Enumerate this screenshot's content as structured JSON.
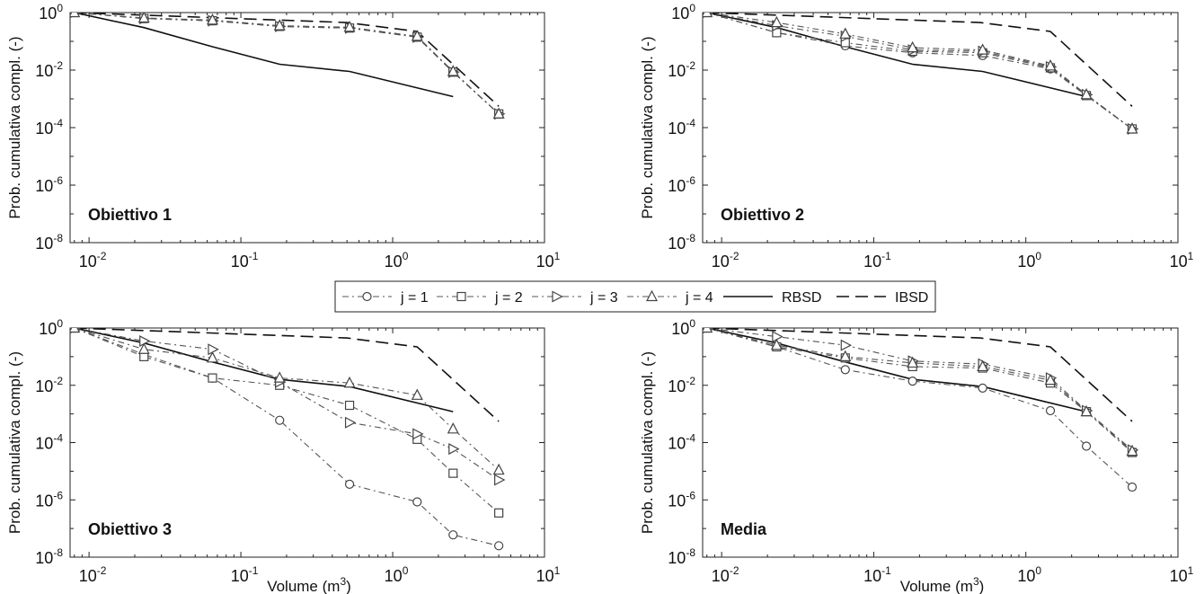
{
  "legend": {
    "entries": [
      {
        "label": "j = 1",
        "series": "j1"
      },
      {
        "label": "j = 2",
        "series": "j2"
      },
      {
        "label": "j = 3",
        "series": "j3"
      },
      {
        "label": "j = 4",
        "series": "j4"
      },
      {
        "label": "RBSD",
        "series": "RBSD"
      },
      {
        "label": "IBSD",
        "series": "IBSD"
      }
    ]
  },
  "series_styles": {
    "j1": {
      "marker": "circle",
      "dash": "dashdot",
      "color": "#555555"
    },
    "j2": {
      "marker": "square",
      "dash": "dashdot",
      "color": "#555555"
    },
    "j3": {
      "marker": "triangle-right",
      "dash": "dashdot",
      "color": "#555555"
    },
    "j4": {
      "marker": "triangle-up",
      "dash": "dashdot",
      "color": "#555555"
    },
    "RBSD": {
      "marker": "none",
      "dash": "solid",
      "color": "#111111"
    },
    "IBSD": {
      "marker": "none",
      "dash": "dashed",
      "color": "#111111"
    }
  },
  "chart_data": [
    {
      "type": "line",
      "panel_title": "Obiettivo 1",
      "xlabel": "",
      "ylabel": "Prob. cumulativa compl. (-)",
      "x_scale": "log",
      "y_scale": "log",
      "xlim": [
        0.0075,
        10
      ],
      "ylim": [
        1e-08,
        1
      ],
      "xticks": [
        "10-2",
        "10-1",
        "100",
        "101"
      ],
      "yticks": [
        "10-8",
        "10-6",
        "10-4",
        "10-2",
        "100"
      ],
      "grid": false,
      "x": [
        0.008,
        0.023,
        0.065,
        0.18,
        0.52,
        1.45,
        2.5,
        5.0
      ],
      "series": [
        {
          "name": "j = 1",
          "key": "j1",
          "values": [
            1.0,
            0.62,
            0.52,
            0.33,
            0.29,
            0.14,
            0.0085,
            0.0003
          ]
        },
        {
          "name": "j = 2",
          "key": "j2",
          "values": [
            1.0,
            0.62,
            0.52,
            0.33,
            0.29,
            0.14,
            0.0085,
            0.0003
          ]
        },
        {
          "name": "j = 3",
          "key": "j3",
          "values": [
            1.0,
            0.62,
            0.52,
            0.33,
            0.29,
            0.14,
            0.0085,
            0.0003
          ]
        },
        {
          "name": "j = 4",
          "key": "j4",
          "values": [
            1.0,
            0.65,
            0.55,
            0.35,
            0.31,
            0.15,
            0.009,
            0.0003
          ]
        }
      ],
      "reference": [
        {
          "name": "RBSD",
          "key": "RBSD",
          "x": [
            0.008,
            0.023,
            0.065,
            0.18,
            0.52,
            2.5
          ],
          "values": [
            1.0,
            0.3,
            0.065,
            0.016,
            0.009,
            0.0012
          ]
        },
        {
          "name": "IBSD",
          "key": "IBSD",
          "x": [
            0.008,
            0.5,
            1.45,
            5.0
          ],
          "values": [
            1.0,
            0.45,
            0.22,
            0.00055
          ]
        }
      ]
    },
    {
      "type": "line",
      "panel_title": "Obiettivo 2",
      "xlabel": "",
      "ylabel": "Prob. cumulativa compl. (-)",
      "x_scale": "log",
      "y_scale": "log",
      "xlim": [
        0.0075,
        10
      ],
      "ylim": [
        1e-08,
        1
      ],
      "xticks": [
        "10-2",
        "10-1",
        "100",
        "101"
      ],
      "yticks": [
        "10-8",
        "10-6",
        "10-4",
        "10-2",
        "100"
      ],
      "grid": false,
      "x": [
        0.008,
        0.023,
        0.065,
        0.18,
        0.52,
        1.45,
        2.5,
        5.0
      ],
      "series": [
        {
          "name": "j = 1",
          "key": "j1",
          "values": [
            1.0,
            0.2,
            0.07,
            0.04,
            0.032,
            0.011,
            0.0013,
            9e-05
          ]
        },
        {
          "name": "j = 2",
          "key": "j2",
          "values": [
            1.0,
            0.2,
            0.09,
            0.045,
            0.04,
            0.012,
            0.0013,
            9e-05
          ]
        },
        {
          "name": "j = 3",
          "key": "j3",
          "values": [
            1.0,
            0.35,
            0.15,
            0.05,
            0.045,
            0.013,
            0.0014,
            9e-05
          ]
        },
        {
          "name": "j = 4",
          "key": "j4",
          "values": [
            1.0,
            0.45,
            0.18,
            0.06,
            0.05,
            0.014,
            0.0014,
            9e-05
          ]
        }
      ],
      "reference": [
        {
          "name": "RBSD",
          "key": "RBSD",
          "x": [
            0.008,
            0.023,
            0.065,
            0.18,
            0.52,
            2.5
          ],
          "values": [
            1.0,
            0.3,
            0.065,
            0.016,
            0.009,
            0.0012
          ]
        },
        {
          "name": "IBSD",
          "key": "IBSD",
          "x": [
            0.008,
            0.5,
            1.45,
            5.0
          ],
          "values": [
            1.0,
            0.45,
            0.22,
            0.00055
          ]
        }
      ]
    },
    {
      "type": "line",
      "panel_title": "Obiettivo 3",
      "xlabel": "Volume (m3)",
      "ylabel": "Prob. cumulativa compl. (-)",
      "x_scale": "log",
      "y_scale": "log",
      "xlim": [
        0.0075,
        10
      ],
      "ylim": [
        1e-08,
        1
      ],
      "xticks": [
        "10-2",
        "10-1",
        "100",
        "101"
      ],
      "yticks": [
        "10-8",
        "10-6",
        "10-4",
        "10-2",
        "100"
      ],
      "grid": false,
      "x": [
        0.008,
        0.023,
        0.065,
        0.18,
        0.52,
        1.45,
        2.5,
        5.0
      ],
      "series": [
        {
          "name": "j = 1",
          "key": "j1",
          "values": [
            1.0,
            0.12,
            0.018,
            0.0006,
            3.5e-06,
            8.5e-07,
            6e-08,
            2.5e-08
          ]
        },
        {
          "name": "j = 2",
          "key": "j2",
          "values": [
            1.0,
            0.1,
            0.018,
            0.01,
            0.002,
            0.00013,
            8.5e-06,
            3.5e-07
          ]
        },
        {
          "name": "j = 3",
          "key": "j3",
          "values": [
            1.0,
            0.35,
            0.18,
            0.013,
            0.0005,
            0.0002,
            6e-05,
            5e-06
          ]
        },
        {
          "name": "j = 4",
          "key": "j4",
          "values": [
            1.0,
            0.18,
            0.09,
            0.018,
            0.012,
            0.0045,
            0.0003,
            1.1e-05
          ]
        }
      ],
      "reference": [
        {
          "name": "RBSD",
          "key": "RBSD",
          "x": [
            0.008,
            0.023,
            0.065,
            0.18,
            0.52,
            2.5
          ],
          "values": [
            1.0,
            0.3,
            0.065,
            0.016,
            0.009,
            0.0012
          ]
        },
        {
          "name": "IBSD",
          "key": "IBSD",
          "x": [
            0.008,
            0.5,
            1.45,
            5.0
          ],
          "values": [
            1.0,
            0.45,
            0.22,
            0.00055
          ]
        }
      ]
    },
    {
      "type": "line",
      "panel_title": "Media",
      "xlabel": "Volume (m3)",
      "ylabel": "Prob. cumulativa compl. (-)",
      "x_scale": "log",
      "y_scale": "log",
      "xlim": [
        0.0075,
        10
      ],
      "ylim": [
        1e-08,
        1
      ],
      "xticks": [
        "10-2",
        "10-1",
        "100",
        "101"
      ],
      "yticks": [
        "10-8",
        "10-6",
        "10-4",
        "10-2",
        "100"
      ],
      "grid": false,
      "x": [
        0.008,
        0.023,
        0.065,
        0.18,
        0.52,
        1.45,
        2.5,
        5.0
      ],
      "series": [
        {
          "name": "j = 1",
          "key": "j1",
          "values": [
            1.0,
            0.22,
            0.035,
            0.014,
            0.008,
            0.0013,
            7.5e-05,
            2.8e-06
          ]
        },
        {
          "name": "j = 2",
          "key": "j2",
          "values": [
            1.0,
            0.22,
            0.09,
            0.045,
            0.04,
            0.012,
            0.0012,
            4.5e-05
          ]
        },
        {
          "name": "j = 3",
          "key": "j3",
          "values": [
            1.0,
            0.5,
            0.25,
            0.07,
            0.055,
            0.018,
            0.0013,
            5.5e-05
          ]
        },
        {
          "name": "j = 4",
          "key": "j4",
          "values": [
            1.0,
            0.25,
            0.1,
            0.06,
            0.045,
            0.015,
            0.0012,
            5e-05
          ]
        }
      ],
      "reference": [
        {
          "name": "RBSD",
          "key": "RBSD",
          "x": [
            0.008,
            0.023,
            0.065,
            0.18,
            0.52,
            2.5
          ],
          "values": [
            1.0,
            0.3,
            0.065,
            0.016,
            0.009,
            0.0012
          ]
        },
        {
          "name": "IBSD",
          "key": "IBSD",
          "x": [
            0.008,
            0.5,
            1.45,
            5.0
          ],
          "values": [
            1.0,
            0.45,
            0.22,
            0.00055
          ]
        }
      ]
    }
  ]
}
